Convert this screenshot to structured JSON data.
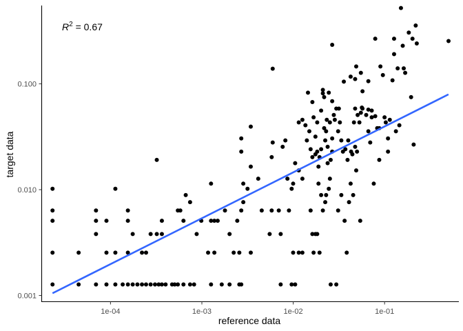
{
  "chart_data": {
    "type": "scatter",
    "title": "",
    "xlabel": "reference data",
    "ylabel": "target data",
    "x_scale": "log10",
    "y_scale": "log10",
    "xlim": [
      1.75e-05,
      0.65
    ],
    "ylim": [
      0.00088,
      0.55
    ],
    "x_ticks": [
      {
        "value": 0.0001,
        "label": "1e-04"
      },
      {
        "value": 0.001,
        "label": "1e-03"
      },
      {
        "value": 0.01,
        "label": "1e-02"
      },
      {
        "value": 0.1,
        "label": "1e-01"
      }
    ],
    "y_ticks": [
      {
        "value": 0.001,
        "label": "0.001"
      },
      {
        "value": 0.01,
        "label": "0.010"
      },
      {
        "value": 0.1,
        "label": "0.100"
      }
    ],
    "grid": false,
    "annotation": {
      "label": "R",
      "superscript": "2",
      "value_text": " = 0.67"
    },
    "colors": {
      "points": "#000000",
      "fit_line": "#3366ff",
      "axis": "#000000",
      "tick_label": "#4d4d4d"
    },
    "fit_line": {
      "x": [
        2.32e-05,
        0.5
      ],
      "y": [
        0.00105,
        0.0795
      ]
    },
    "points": [
      [
        2.32e-05,
        0.00127
      ],
      [
        2.32e-05,
        0.00254
      ],
      [
        2.32e-05,
        0.00508
      ],
      [
        2.32e-05,
        0.00635
      ],
      [
        2.32e-05,
        0.0102
      ],
      [
        4.48e-05,
        0.00127
      ],
      [
        4.48e-05,
        0.00254
      ],
      [
        6.94e-05,
        0.00127
      ],
      [
        6.94e-05,
        0.00381
      ],
      [
        6.94e-05,
        0.00508
      ],
      [
        6.94e-05,
        0.00635
      ],
      [
        9.03e-05,
        0.00127
      ],
      [
        9.03e-05,
        0.00254
      ],
      [
        9.03e-05,
        0.00508
      ],
      [
        0.000113,
        0.00127
      ],
      [
        0.000113,
        0.00254
      ],
      [
        0.000113,
        0.0102
      ],
      [
        0.000136,
        0.00127
      ],
      [
        0.000155,
        0.00127
      ],
      [
        0.000155,
        0.00254
      ],
      [
        0.000155,
        0.00508
      ],
      [
        0.000155,
        0.00635
      ],
      [
        0.000175,
        0.00127
      ],
      [
        0.000175,
        0.00381
      ],
      [
        0.000197,
        0.00127
      ],
      [
        0.000221,
        0.00127
      ],
      [
        0.000221,
        0.00254
      ],
      [
        0.000245,
        0.00127
      ],
      [
        0.000245,
        0.00254
      ],
      [
        0.000275,
        0.00127
      ],
      [
        0.000275,
        0.00381
      ],
      [
        0.000307,
        0.00127
      ],
      [
        0.000321,
        0.00381
      ],
      [
        0.000321,
        0.0191
      ],
      [
        0.000337,
        0.00127
      ],
      [
        0.000365,
        0.00127
      ],
      [
        0.000365,
        0.00381
      ],
      [
        0.000365,
        0.00508
      ],
      [
        0.000401,
        0.00127
      ],
      [
        0.000472,
        0.00127
      ],
      [
        0.000504,
        0.00127
      ],
      [
        0.000546,
        0.00127
      ],
      [
        0.000546,
        0.00635
      ],
      [
        0.000581,
        0.00635
      ],
      [
        0.000629,
        0.00127
      ],
      [
        0.000629,
        0.00508
      ],
      [
        0.000666,
        0.00889
      ],
      [
        0.000743,
        0.00127
      ],
      [
        0.000743,
        0.00762
      ],
      [
        0.000822,
        0.00127
      ],
      [
        0.000877,
        0.00381
      ],
      [
        0.000986,
        0.00508
      ],
      [
        0.00117,
        0.00254
      ],
      [
        0.00126,
        0.00127
      ],
      [
        0.00126,
        0.00508
      ],
      [
        0.00126,
        0.0114
      ],
      [
        0.00137,
        0.00254
      ],
      [
        0.00137,
        0.00508
      ],
      [
        0.00149,
        0.00508
      ],
      [
        0.00165,
        0.00127
      ],
      [
        0.00179,
        0.00635
      ],
      [
        0.00201,
        0.00127
      ],
      [
        0.00201,
        0.00381
      ],
      [
        0.00223,
        0.00254
      ],
      [
        0.00244,
        0.00508
      ],
      [
        0.00257,
        0.00127
      ],
      [
        0.00257,
        0.00254
      ],
      [
        0.0027,
        0.00127
      ],
      [
        0.0027,
        0.00635
      ],
      [
        0.0027,
        0.0229
      ],
      [
        0.0027,
        0.0305
      ],
      [
        0.00284,
        0.00762
      ],
      [
        0.00284,
        0.0114
      ],
      [
        0.00316,
        0.0102
      ],
      [
        0.00343,
        0.00254
      ],
      [
        0.00343,
        0.0165
      ],
      [
        0.00343,
        0.0394
      ],
      [
        0.00414,
        0.0127
      ],
      [
        0.00452,
        0.00635
      ],
      [
        0.00552,
        0.00381
      ],
      [
        0.00581,
        0.00635
      ],
      [
        0.00581,
        0.0203
      ],
      [
        0.00596,
        0.0279
      ],
      [
        0.00596,
        0.139
      ],
      [
        0.00695,
        0.00635
      ],
      [
        0.00729,
        0.00127
      ],
      [
        0.00729,
        0.00381
      ],
      [
        0.00766,
        0.0254
      ],
      [
        0.0082,
        0.0292
      ],
      [
        0.00864,
        0.0127
      ],
      [
        0.00898,
        0.00635
      ],
      [
        0.00961,
        0.00127
      ],
      [
        0.00961,
        0.0102
      ],
      [
        0.00998,
        0.00254
      ],
      [
        0.00998,
        0.0114
      ],
      [
        0.0105,
        0.00127
      ],
      [
        0.0105,
        0.0178
      ],
      [
        0.0115,
        0.00254
      ],
      [
        0.0115,
        0.0152
      ],
      [
        0.0115,
        0.0432
      ],
      [
        0.0126,
        0.00254
      ],
      [
        0.0126,
        0.0457
      ],
      [
        0.0126,
        0.0127
      ],
      [
        0.0136,
        0.0406
      ],
      [
        0.0141,
        0.0292
      ],
      [
        0.0145,
        0.0826
      ],
      [
        0.015,
        0.0356
      ],
      [
        0.0155,
        0.00635
      ],
      [
        0.0155,
        0.0241
      ],
      [
        0.0162,
        0.00381
      ],
      [
        0.0162,
        0.0203
      ],
      [
        0.0162,
        0.0673
      ],
      [
        0.0167,
        0.00254
      ],
      [
        0.0167,
        0.0483
      ],
      [
        0.0175,
        0.00381
      ],
      [
        0.0175,
        0.0216
      ],
      [
        0.0175,
        0.0317
      ],
      [
        0.0183,
        0.00381
      ],
      [
        0.0183,
        0.0432
      ],
      [
        0.0183,
        0.0229
      ],
      [
        0.0189,
        0.0114
      ],
      [
        0.0189,
        0.0165
      ],
      [
        0.0194,
        0.00254
      ],
      [
        0.0194,
        0.0203
      ],
      [
        0.0202,
        0.00889
      ],
      [
        0.0202,
        0.0241
      ],
      [
        0.0202,
        0.0559
      ],
      [
        0.0211,
        0.00635
      ],
      [
        0.0211,
        0.0813
      ],
      [
        0.0211,
        0.0876
      ],
      [
        0.0218,
        0.0381
      ],
      [
        0.0218,
        0.0749
      ],
      [
        0.0224,
        0.00762
      ],
      [
        0.0224,
        0.0292
      ],
      [
        0.0229,
        0.00889
      ],
      [
        0.0229,
        0.0356
      ],
      [
        0.0233,
        0.0457
      ],
      [
        0.0238,
        0.0254
      ],
      [
        0.0238,
        0.0178
      ],
      [
        0.0245,
        0.0102
      ],
      [
        0.0245,
        0.0826
      ],
      [
        0.0252,
        0.0127
      ],
      [
        0.0252,
        0.0432
      ],
      [
        0.0257,
        0.00127
      ],
      [
        0.0257,
        0.0191
      ],
      [
        0.0267,
        0.0686
      ],
      [
        0.0267,
        0.0229
      ],
      [
        0.0267,
        0.0305
      ],
      [
        0.0267,
        0.234
      ],
      [
        0.0278,
        0.0508
      ],
      [
        0.0285,
        0.0457
      ],
      [
        0.0296,
        0.00127
      ],
      [
        0.0296,
        0.0584
      ],
      [
        0.031,
        0.00635
      ],
      [
        0.031,
        0.0356
      ],
      [
        0.0316,
        0.0584
      ],
      [
        0.0324,
        0.0432
      ],
      [
        0.0336,
        0.00889
      ],
      [
        0.0336,
        0.0292
      ],
      [
        0.035,
        0.0229
      ],
      [
        0.0358,
        0.105
      ],
      [
        0.0365,
        0.00508
      ],
      [
        0.0372,
        0.0241
      ],
      [
        0.0385,
        0.00254
      ],
      [
        0.0393,
        0.0191
      ],
      [
        0.04,
        0.0292
      ],
      [
        0.0408,
        0.00762
      ],
      [
        0.0425,
        0.0114
      ],
      [
        0.0425,
        0.117
      ],
      [
        0.043,
        0.0229
      ],
      [
        0.0444,
        0.0216
      ],
      [
        0.0453,
        0.00889
      ],
      [
        0.0462,
        0.0432
      ],
      [
        0.0476,
        0.111
      ],
      [
        0.0476,
        0.0254
      ],
      [
        0.0476,
        0.0584
      ],
      [
        0.0489,
        0.0152
      ],
      [
        0.0489,
        0.146
      ],
      [
        0.0499,
        0.0229
      ],
      [
        0.0507,
        0.0508
      ],
      [
        0.053,
        0.0432
      ],
      [
        0.0541,
        0.00508
      ],
      [
        0.055,
        0.0533
      ],
      [
        0.055,
        0.127
      ],
      [
        0.0564,
        0.0597
      ],
      [
        0.0573,
        0.0584
      ],
      [
        0.0573,
        0.0851
      ],
      [
        0.0629,
        0.0508
      ],
      [
        0.0664,
        0.0571
      ],
      [
        0.0664,
        0.0356
      ],
      [
        0.0664,
        0.106
      ],
      [
        0.0696,
        0.0279
      ],
      [
        0.0723,
        0.0559
      ],
      [
        0.0723,
        0.0483
      ],
      [
        0.0761,
        0.0114
      ],
      [
        0.079,
        0.0495
      ],
      [
        0.079,
        0.267
      ],
      [
        0.083,
        0.0381
      ],
      [
        0.0874,
        0.0191
      ],
      [
        0.0874,
        0.0381
      ],
      [
        0.09,
        0.146
      ],
      [
        0.0958,
        0.121
      ],
      [
        0.0999,
        0.0483
      ],
      [
        0.103,
        0.0432
      ],
      [
        0.109,
        0.0229
      ],
      [
        0.109,
        0.0305
      ],
      [
        0.114,
        0.0457
      ],
      [
        0.122,
        0.108
      ],
      [
        0.127,
        0.191
      ],
      [
        0.127,
        0.267
      ],
      [
        0.133,
        0.0356
      ],
      [
        0.139,
        0.14
      ],
      [
        0.145,
        0.0406
      ],
      [
        0.151,
        0.521
      ],
      [
        0.158,
        0.229
      ],
      [
        0.162,
        0.14
      ],
      [
        0.168,
        0.127
      ],
      [
        0.184,
        0.305
      ],
      [
        0.195,
        0.0749
      ],
      [
        0.202,
        0.267
      ],
      [
        0.208,
        0.0267
      ],
      [
        0.219,
        0.356
      ],
      [
        0.225,
        0.241
      ],
      [
        0.501,
        0.254
      ]
    ]
  }
}
